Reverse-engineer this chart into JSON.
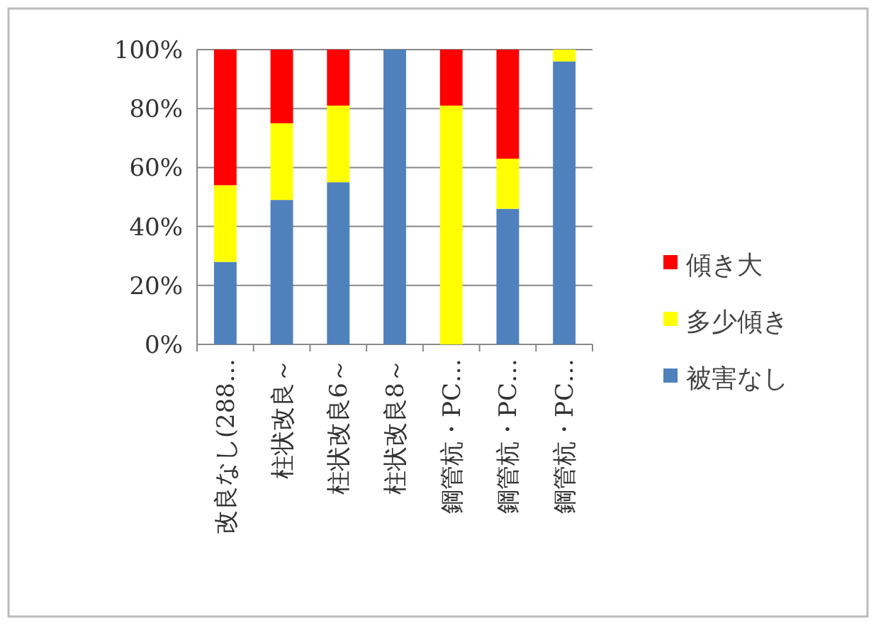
{
  "chart_data": {
    "type": "bar",
    "stacked": true,
    "categories": [
      "改良なし(288…",
      "柱状改良～",
      "柱状改良6～",
      "柱状改良8～",
      "鋼管杭・PC…",
      "鋼管杭・PC…",
      "鋼管杭・PC…"
    ],
    "series": [
      {
        "name": "被害なし",
        "color": "#4f81bd",
        "values": [
          28,
          49,
          55,
          100,
          0,
          46,
          96
        ]
      },
      {
        "name": "多少傾き",
        "color": "#ffff00",
        "values": [
          26,
          26,
          26,
          0,
          81,
          17,
          4
        ]
      },
      {
        "name": "傾き大",
        "color": "#ff0000",
        "values": [
          46,
          25,
          19,
          0,
          19,
          37,
          0
        ]
      }
    ],
    "ylim": [
      0,
      100
    ],
    "yticks": [
      {
        "value": 0,
        "label": "0%"
      },
      {
        "value": 20,
        "label": "20%"
      },
      {
        "value": 40,
        "label": "40%"
      },
      {
        "value": 60,
        "label": "60%"
      },
      {
        "value": 80,
        "label": "80%"
      },
      {
        "value": 100,
        "label": "100%"
      }
    ],
    "grid": "y",
    "legend": "right"
  }
}
